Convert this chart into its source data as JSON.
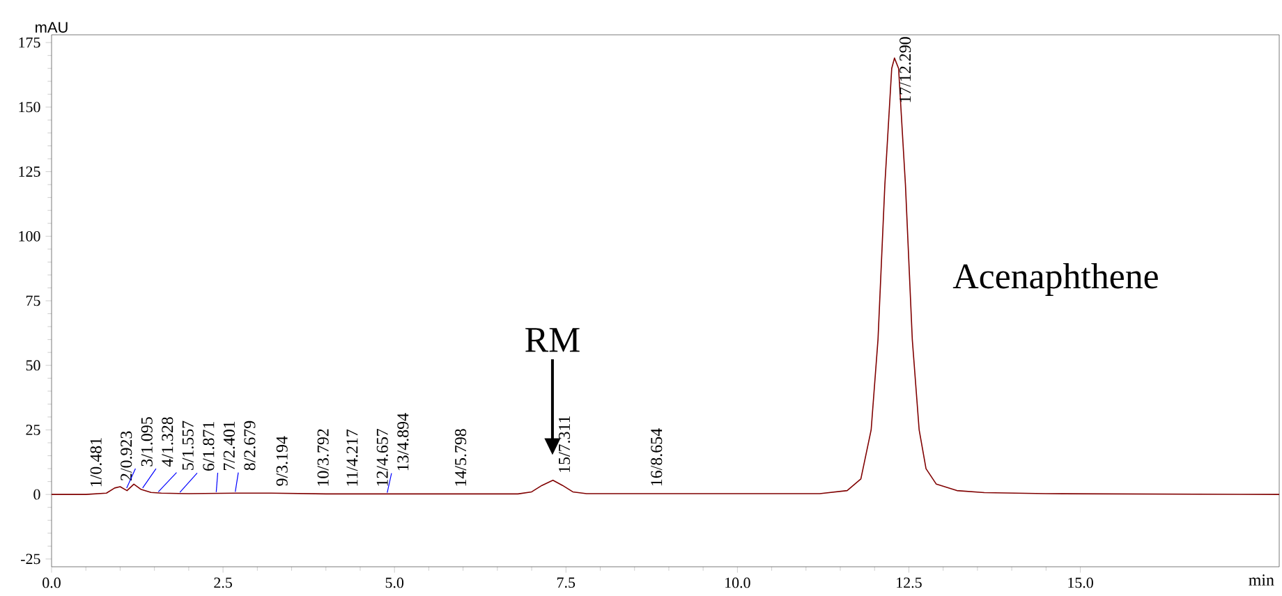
{
  "chart_data": {
    "type": "line",
    "xlabel": "min",
    "ylabel": "mAU",
    "x": [
      0,
      0.5,
      0.8,
      0.92,
      1.0,
      1.1,
      1.2,
      1.3,
      1.45,
      1.6,
      2.0,
      2.7,
      3.2,
      4.0,
      5.0,
      6.8,
      7.0,
      7.15,
      7.31,
      7.45,
      7.6,
      7.8,
      9.0,
      11.2,
      11.6,
      11.8,
      11.95,
      12.05,
      12.15,
      12.25,
      12.29,
      12.35,
      12.45,
      12.55,
      12.65,
      12.75,
      12.9,
      13.2,
      13.6,
      14.5,
      17.9
    ],
    "series": [
      {
        "color": "#800000",
        "values": [
          0,
          0,
          0.5,
          2.5,
          3,
          1.5,
          4,
          2,
          0.8,
          0.5,
          0.3,
          0.5,
          0.5,
          0.2,
          0.2,
          0.2,
          1,
          3.5,
          5.5,
          3.5,
          1,
          0.3,
          0.3,
          0.3,
          1.5,
          6,
          25,
          60,
          120,
          165,
          169,
          165,
          120,
          60,
          25,
          10,
          4,
          1.5,
          0.7,
          0.3,
          0
        ]
      }
    ],
    "line_style": "solid",
    "xlim": [
      0,
      17.9
    ],
    "ylim": [
      -28,
      178
    ],
    "xticks": [
      {
        "value": 0,
        "label": "0.0"
      },
      {
        "value": 2.5,
        "label": "2.5"
      },
      {
        "value": 5,
        "label": "5.0"
      },
      {
        "value": 7.5,
        "label": "7.5"
      },
      {
        "value": 10,
        "label": "10.0"
      },
      {
        "value": 12.5,
        "label": "12.5"
      },
      {
        "value": 15,
        "label": "15.0"
      }
    ],
    "yticks": [
      -25,
      0,
      25,
      50,
      75,
      100,
      125,
      150,
      175
    ],
    "annotations": [
      {
        "text": "1/0.481",
        "x": 0.481,
        "y": 0
      },
      {
        "text": "2/0.923",
        "x": 0.923,
        "y": 2.5
      },
      {
        "text": "3/1.095",
        "x": 1.095,
        "y": 2
      },
      {
        "text": "4/1.328",
        "x": 1.328,
        "y": 2
      },
      {
        "text": "5/1.557",
        "x": 1.557,
        "y": 0.5
      },
      {
        "text": "6/1.871",
        "x": 1.871,
        "y": 0.3
      },
      {
        "text": "7/2.401",
        "x": 2.401,
        "y": 0.4
      },
      {
        "text": "8/2.679",
        "x": 2.679,
        "y": 0.5
      },
      {
        "text": "9/3.194",
        "x": 3.194,
        "y": 0.5
      },
      {
        "text": "10/3.792",
        "x": 3.792,
        "y": 0.2
      },
      {
        "text": "11/4.217",
        "x": 4.217,
        "y": 0.2
      },
      {
        "text": "12/4.657",
        "x": 4.657,
        "y": 0.2
      },
      {
        "text": "13/4.894",
        "x": 4.894,
        "y": 0.2
      },
      {
        "text": "14/5.798",
        "x": 5.798,
        "y": 0.2
      },
      {
        "text": "15/7.311",
        "x": 7.311,
        "y": 5.5
      },
      {
        "text": "16/8.654",
        "x": 8.654,
        "y": 0.3
      },
      {
        "text": "17/12.290",
        "x": 12.29,
        "y": 169
      },
      "RM",
      "Acenaphthene"
    ]
  }
}
